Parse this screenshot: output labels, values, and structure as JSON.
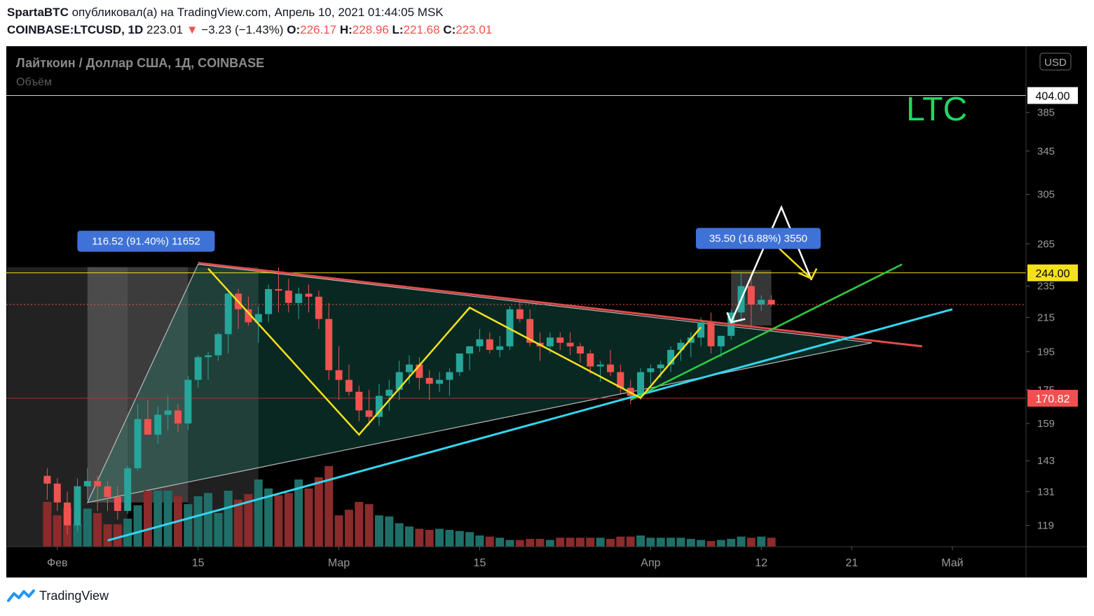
{
  "header": {
    "author": "SpartaBTC",
    "published_text": "опубликовал(а) на TradingView.com, Апрель 10, 2021 01:44:05 MSK",
    "symbol": "COINBASE:LTCUSD, 1D",
    "last": "223.01",
    "change": "−3.23 (−1.43%)",
    "o_label": "O:",
    "o_value": "226.17",
    "h_label": "H:",
    "h_value": "228.96",
    "l_label": "L:",
    "l_value": "221.68",
    "c_label": "C:",
    "c_value": "223.01"
  },
  "footer": {
    "brand": "TradingView"
  },
  "colors": {
    "up": "#26a69a",
    "down": "#ef5350",
    "volume_up": "#1f6f68",
    "volume_down": "#8b2b2b",
    "resistance": "#e04b4b",
    "support": "#33d6f0",
    "green_line": "#2ecc40",
    "yellow": "#f4e11d",
    "label_box": "#3f72d6",
    "title_text": "#1ed760"
  },
  "chart_data": {
    "type": "candlestick",
    "title": "Лайткоин / Доллар США, 1Д, COINBASE",
    "volume_label": "Объём",
    "annotation": "LTC",
    "currency": "USD",
    "y_axis_scale": "log",
    "ylim": [
      112,
      425
    ],
    "y_ticks": [
      119,
      131,
      143,
      159,
      175,
      195,
      215,
      235,
      265,
      305,
      345,
      385
    ],
    "x_range": [
      -4,
      97
    ],
    "x_ticks": [
      {
        "day": 1,
        "label": "Фев"
      },
      {
        "day": 15,
        "label": "15"
      },
      {
        "day": 29,
        "label": "Мар"
      },
      {
        "day": 43,
        "label": "15"
      },
      {
        "day": 60,
        "label": "Апр"
      },
      {
        "day": 71,
        "label": "12"
      },
      {
        "day": 80,
        "label": "21"
      },
      {
        "day": 90,
        "label": "Май"
      }
    ],
    "price_labels": [
      {
        "value": 404.0,
        "label": "404.00",
        "style": "white"
      },
      {
        "value": 244.0,
        "label": "244.00",
        "style": "yellow"
      },
      {
        "value": 170.82,
        "label": "170.82",
        "style": "red"
      }
    ],
    "candles": [
      [
        137,
        140,
        128,
        134
      ],
      [
        134,
        136,
        124,
        127
      ],
      [
        127,
        131,
        116,
        119
      ],
      [
        119,
        136,
        117,
        133
      ],
      [
        133,
        140,
        128,
        135
      ],
      [
        135,
        137,
        124,
        133
      ],
      [
        133,
        135,
        124,
        129
      ],
      [
        129,
        133,
        121,
        124
      ],
      [
        124,
        141,
        123,
        140
      ],
      [
        140,
        168,
        139,
        161
      ],
      [
        161,
        170,
        154,
        154
      ],
      [
        154,
        167,
        150,
        163
      ],
      [
        163,
        172,
        156,
        165
      ],
      [
        165,
        168,
        155,
        159
      ],
      [
        159,
        182,
        156,
        180
      ],
      [
        180,
        193,
        176,
        192
      ],
      [
        192,
        195,
        180,
        193
      ],
      [
        193,
        206,
        190,
        205
      ],
      [
        205,
        232,
        194,
        230
      ],
      [
        230,
        233,
        208,
        220
      ],
      [
        220,
        228,
        210,
        212
      ],
      [
        212,
        222,
        200,
        217
      ],
      [
        217,
        236,
        212,
        233
      ],
      [
        233,
        248,
        218,
        232
      ],
      [
        232,
        240,
        218,
        224
      ],
      [
        224,
        234,
        214,
        230
      ],
      [
        230,
        236,
        218,
        228
      ],
      [
        228,
        232,
        208,
        214
      ],
      [
        214,
        224,
        180,
        185
      ],
      [
        185,
        198,
        170,
        180
      ],
      [
        180,
        188,
        172,
        174
      ],
      [
        174,
        177,
        160,
        165
      ],
      [
        165,
        175,
        158,
        162
      ],
      [
        162,
        178,
        158,
        172
      ],
      [
        172,
        180,
        165,
        175
      ],
      [
        175,
        190,
        170,
        184
      ],
      [
        184,
        193,
        178,
        188
      ],
      [
        188,
        192,
        175,
        181
      ],
      [
        181,
        185,
        170,
        178
      ],
      [
        178,
        184,
        174,
        180
      ],
      [
        180,
        186,
        172,
        184
      ],
      [
        184,
        194,
        182,
        194
      ],
      [
        194,
        198,
        185,
        198
      ],
      [
        198,
        208,
        195,
        202
      ],
      [
        202,
        206,
        194,
        196
      ],
      [
        196,
        204,
        192,
        198
      ],
      [
        198,
        222,
        196,
        220
      ],
      [
        220,
        226,
        212,
        214
      ],
      [
        214,
        220,
        198,
        200
      ],
      [
        200,
        206,
        190,
        198
      ],
      [
        198,
        206,
        194,
        203
      ],
      [
        203,
        206,
        196,
        200
      ],
      [
        200,
        206,
        193,
        198
      ],
      [
        198,
        200,
        189,
        194
      ],
      [
        194,
        196,
        183,
        187
      ],
      [
        187,
        190,
        179,
        188
      ],
      [
        188,
        196,
        182,
        184
      ],
      [
        184,
        188,
        173,
        176
      ],
      [
        176,
        180,
        168,
        172
      ],
      [
        172,
        186,
        170,
        184
      ],
      [
        184,
        188,
        178,
        186
      ],
      [
        186,
        190,
        181,
        188
      ],
      [
        188,
        198,
        184,
        196
      ],
      [
        196,
        202,
        190,
        200
      ],
      [
        200,
        206,
        192,
        203
      ],
      [
        203,
        215,
        198,
        212
      ],
      [
        212,
        218,
        194,
        198
      ],
      [
        198,
        204,
        192,
        204
      ],
      [
        204,
        220,
        202,
        218
      ],
      [
        218,
        244,
        212,
        235
      ],
      [
        235,
        244,
        208,
        223
      ],
      [
        223,
        229,
        219,
        226
      ],
      [
        226,
        229,
        222,
        223
      ]
    ],
    "volume": [
      40,
      28,
      35,
      20,
      34,
      30,
      20,
      20,
      25,
      37,
      50,
      50,
      50,
      45,
      38,
      45,
      48,
      30,
      50,
      42,
      47,
      60,
      52,
      46,
      48,
      60,
      52,
      62,
      72,
      28,
      33,
      40,
      38,
      28,
      27,
      21,
      18,
      16,
      15,
      16,
      15,
      14,
      13,
      10,
      9,
      8,
      6,
      6,
      7,
      7,
      6,
      8,
      8,
      8,
      8,
      8,
      7,
      9,
      9,
      10,
      8,
      8,
      8,
      8,
      7,
      6,
      5,
      6,
      7,
      9,
      8,
      9,
      8
    ]
  }
}
